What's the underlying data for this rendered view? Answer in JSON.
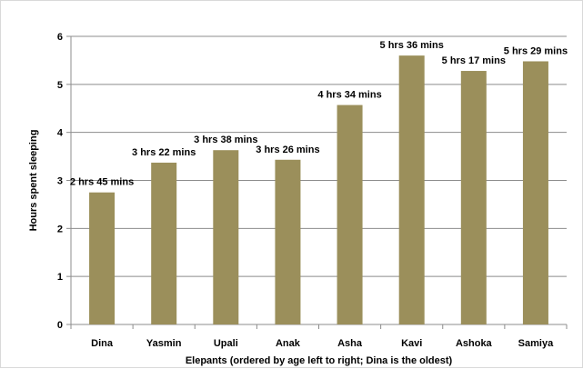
{
  "chart_data": {
    "type": "bar",
    "categories": [
      "Dina",
      "Yasmin",
      "Upali",
      "Anak",
      "Asha",
      "Kavi",
      "Ashoka",
      "Samiya"
    ],
    "values": [
      2.75,
      3.37,
      3.63,
      3.43,
      4.57,
      5.6,
      5.28,
      5.48
    ],
    "data_labels": [
      "2 hrs 45 mins",
      "3 hrs 22 mins",
      "3 hrs 38 mins",
      "3 hrs 26 mins",
      "4 hrs 34 mins",
      "5 hrs 36 mins",
      "5 hrs 17 mins",
      "5  hrs 29 mins"
    ],
    "title": "",
    "xlabel": "Elepants (ordered by age left to right; Dina is the oldest)",
    "ylabel": "Hours spent sleeping",
    "ylim": [
      0,
      6
    ],
    "yticks": [
      "0",
      "1",
      "2",
      "3",
      "4",
      "5",
      "6"
    ],
    "grid": true,
    "legend": "none",
    "bar_color": "#9b8f5b",
    "grid_color": "#8c8c8c"
  }
}
